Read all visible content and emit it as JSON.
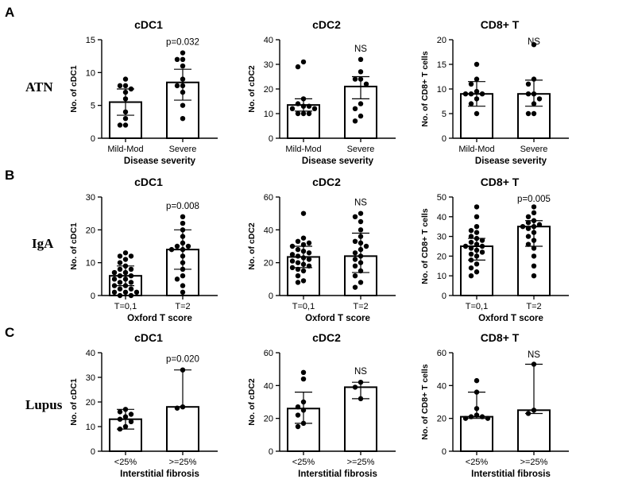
{
  "rows": [
    {
      "letter": "A",
      "label": "ATN",
      "xlabel": "Disease severity"
    },
    {
      "letter": "B",
      "label": "IgA",
      "xlabel": "Oxford T score"
    },
    {
      "letter": "C",
      "label": "Lupus",
      "xlabel": "Interstitial fibrosis"
    }
  ],
  "chart_data": [
    {
      "type": "bar",
      "id": "a1",
      "title": "cDC1",
      "ylabel": "No. of cDC1",
      "xlabel": "Disease severity",
      "categories": [
        "Mild-Mod",
        "Severe"
      ],
      "ylim": [
        0,
        15
      ],
      "yticks": [
        0,
        5,
        10,
        15
      ],
      "values": [
        5.5,
        8.5
      ],
      "error": [
        [
          3.5,
          7.5
        ],
        [
          5.8,
          10.5
        ]
      ],
      "points": [
        [
          9,
          8,
          8,
          7.5,
          7,
          6,
          4,
          3,
          2,
          2
        ],
        [
          13,
          12,
          12,
          11,
          9,
          8,
          8,
          7,
          5,
          3
        ]
      ],
      "annotation": "p=0.032"
    },
    {
      "type": "bar",
      "id": "a2",
      "title": "cDC2",
      "ylabel": "No. of cDC2",
      "xlabel": "Disease severity",
      "categories": [
        "Mild-Mod",
        "Severe"
      ],
      "ylim": [
        0,
        40
      ],
      "yticks": [
        0,
        10,
        20,
        30,
        40
      ],
      "values": [
        13.5,
        21
      ],
      "error": [
        [
          11,
          16
        ],
        [
          16,
          25
        ]
      ],
      "points": [
        [
          31,
          29,
          16,
          14,
          13,
          13,
          12,
          12,
          10,
          10,
          10
        ],
        [
          32,
          27,
          24,
          24,
          22,
          14,
          12,
          9,
          7
        ]
      ],
      "annotation": "NS"
    },
    {
      "type": "bar",
      "id": "a3",
      "title": "CD8+ T",
      "ylabel": "No. of CD8+ T cells",
      "xlabel": "Disease severity",
      "categories": [
        "Mild-Mod",
        "Severe"
      ],
      "ylim": [
        0,
        20
      ],
      "yticks": [
        0,
        5,
        10,
        15,
        20
      ],
      "values": [
        9,
        9
      ],
      "error": [
        [
          6.5,
          11.5
        ],
        [
          6.5,
          11.8
        ]
      ],
      "points": [
        [
          15,
          12,
          11,
          9.5,
          9,
          9,
          9,
          8,
          7,
          5
        ],
        [
          19,
          12,
          11,
          9,
          9,
          8,
          7,
          5,
          5
        ]
      ],
      "annotation": "NS"
    },
    {
      "type": "bar",
      "id": "b1",
      "title": "cDC1",
      "ylabel": "No. of cDC1",
      "xlabel": "Oxford T score",
      "categories": [
        "T=0,1",
        "T=2"
      ],
      "ylim": [
        0,
        30
      ],
      "yticks": [
        0,
        10,
        20,
        30
      ],
      "values": [
        6,
        14
      ],
      "error": [
        [
          3,
          9
        ],
        [
          8,
          20
        ]
      ],
      "points": [
        [
          13,
          12,
          12,
          11,
          10,
          9,
          8,
          8,
          7,
          7,
          6,
          6,
          5,
          5,
          4,
          4,
          3,
          3,
          2,
          2,
          1,
          1,
          1,
          0,
          0
        ],
        [
          24,
          22,
          20,
          18,
          16,
          15,
          15,
          14,
          14,
          12,
          10,
          8,
          6,
          5,
          3,
          1
        ]
      ],
      "annotation": "p=0.008"
    },
    {
      "type": "bar",
      "id": "b2",
      "title": "cDC2",
      "ylabel": "No. of cDC2",
      "xlabel": "Oxford T score",
      "categories": [
        "T=0,1",
        "T=2"
      ],
      "ylim": [
        0,
        60
      ],
      "yticks": [
        0,
        20,
        40,
        60
      ],
      "values": [
        23.5,
        24
      ],
      "error": [
        [
          17,
          30
        ],
        [
          14,
          38
        ]
      ],
      "points": [
        [
          50,
          35,
          33,
          32,
          31,
          30,
          28,
          27,
          26,
          25,
          24,
          23,
          22,
          21,
          20,
          19,
          18,
          17,
          16,
          15,
          12,
          9,
          8
        ],
        [
          50,
          48,
          45,
          40,
          36,
          33,
          32,
          30,
          28,
          26,
          24,
          22,
          20,
          18,
          15,
          12,
          8,
          5
        ]
      ],
      "annotation": "NS"
    },
    {
      "type": "bar",
      "id": "b3",
      "title": "CD8+ T",
      "ylabel": "No. of CD8+ T cells",
      "xlabel": "Oxford T score",
      "categories": [
        "T=0,1",
        "T=2"
      ],
      "ylim": [
        0,
        50
      ],
      "yticks": [
        0,
        10,
        20,
        30,
        40,
        50
      ],
      "values": [
        25,
        35
      ],
      "error": [
        [
          18,
          29
        ],
        [
          25,
          38
        ]
      ],
      "points": [
        [
          45,
          40,
          35,
          33,
          32,
          30,
          29,
          28,
          27,
          26,
          25,
          25,
          24,
          23,
          22,
          21,
          20,
          18,
          16,
          14,
          12,
          10
        ],
        [
          45,
          42,
          40,
          38,
          37,
          36,
          35,
          35,
          34,
          32,
          30,
          28,
          26,
          24,
          20,
          15,
          10
        ]
      ],
      "annotation": "p=0.005"
    },
    {
      "type": "bar",
      "id": "c1",
      "title": "cDC1",
      "ylabel": "No. of cDC1",
      "xlabel": "Interstitial fibrosis",
      "categories": [
        "<25%",
        ">=25%"
      ],
      "ylim": [
        0,
        40
      ],
      "yticks": [
        0,
        10,
        20,
        30,
        40
      ],
      "values": [
        13,
        18
      ],
      "error": [
        [
          9,
          17
        ],
        [
          18,
          33
        ]
      ],
      "points": [
        [
          17,
          16,
          15,
          14,
          13,
          12,
          10,
          9
        ],
        [
          33,
          18,
          17.5
        ]
      ],
      "annotation": "p=0.020"
    },
    {
      "type": "bar",
      "id": "c2",
      "title": "cDC2",
      "ylabel": "No. of cDC2",
      "xlabel": "Interstitial fibrosis",
      "categories": [
        "<25%",
        ">=25%"
      ],
      "ylim": [
        0,
        60
      ],
      "yticks": [
        0,
        20,
        40,
        60
      ],
      "values": [
        26,
        39
      ],
      "error": [
        [
          17,
          36
        ],
        [
          32,
          42
        ]
      ],
      "points": [
        [
          48,
          44,
          30,
          27,
          25,
          22,
          17,
          15
        ],
        [
          42,
          39,
          32
        ]
      ],
      "annotation": "NS"
    },
    {
      "type": "bar",
      "id": "c3",
      "title": "CD8+ T",
      "ylabel": "No. of CD8+ T cells",
      "xlabel": "Interstitial fibrosis",
      "categories": [
        "<25%",
        ">=25%"
      ],
      "ylim": [
        0,
        60
      ],
      "yticks": [
        0,
        20,
        40,
        60
      ],
      "values": [
        21,
        25
      ],
      "error": [
        [
          20,
          36
        ],
        [
          23,
          53
        ]
      ],
      "points": [
        [
          43,
          36,
          26,
          22,
          21,
          21,
          20,
          20
        ],
        [
          53,
          25,
          23
        ]
      ],
      "annotation": "NS"
    }
  ]
}
